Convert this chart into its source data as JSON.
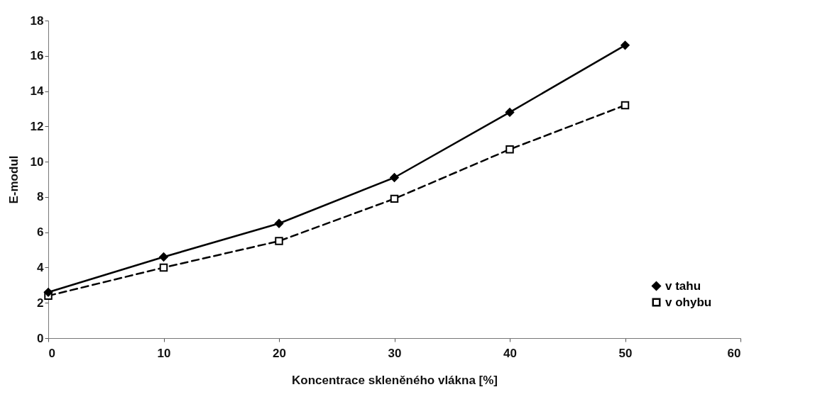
{
  "chart_data": {
    "type": "line",
    "xlabel": "Koncentrace skleněného vlákna [%]",
    "ylabel": "E-modul",
    "x": [
      0,
      10,
      20,
      30,
      40,
      50
    ],
    "series": [
      {
        "name": "v tahu",
        "color": "#000000",
        "marker": "diamond",
        "line_style": "solid",
        "values": [
          2.6,
          4.6,
          6.5,
          9.1,
          12.8,
          16.6
        ]
      },
      {
        "name": "v ohybu",
        "color": "#000000",
        "marker": "square",
        "line_style": "dashed",
        "values": [
          2.4,
          4.0,
          5.5,
          7.9,
          10.7,
          13.2
        ]
      }
    ],
    "xlim": [
      0,
      60
    ],
    "xticks": [
      0,
      10,
      20,
      30,
      40,
      50,
      60
    ],
    "ylim": [
      0,
      18
    ],
    "yticks": [
      0,
      2,
      4,
      6,
      8,
      10,
      12,
      14,
      16,
      18
    ],
    "grid": false,
    "legend": "bottom right"
  }
}
